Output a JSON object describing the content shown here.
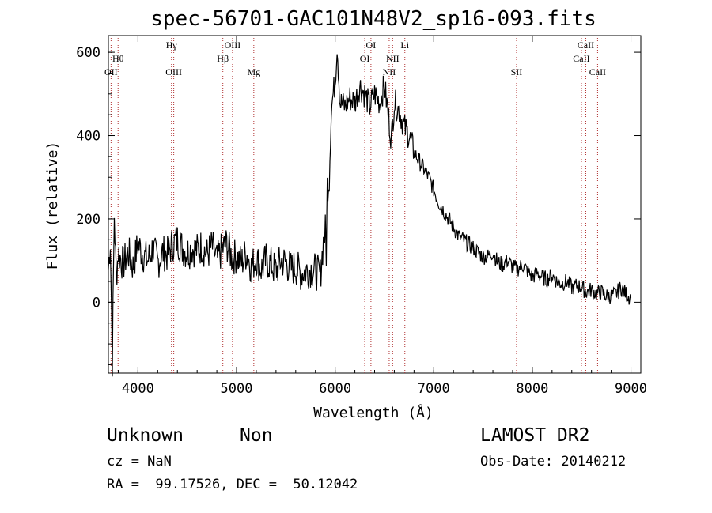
{
  "chart_data": {
    "type": "line",
    "title": "spec-56701-GAC101N48V2_sp16-093.fits",
    "xlabel": "Wavelength (Å)",
    "ylabel": "Flux (relative)",
    "xlim": [
      3700,
      9100
    ],
    "ylim": [
      -170,
      640
    ],
    "xticks": [
      4000,
      5000,
      6000,
      7000,
      8000,
      9000
    ],
    "yticks": [
      0,
      200,
      400,
      600
    ],
    "grid": false,
    "series": [
      {
        "x": [
          3700,
          3720,
          3740,
          3760,
          3780,
          3800,
          3850,
          3900,
          3950,
          4000,
          4050,
          4100,
          4150,
          4200,
          4250,
          4300,
          4350,
          4400,
          4450,
          4500,
          4550,
          4600,
          4650,
          4700,
          4750,
          4800,
          4850,
          4900,
          4950,
          5000,
          5050,
          5100,
          5150,
          5200,
          5250,
          5300,
          5350,
          5400,
          5450,
          5500,
          5550,
          5600,
          5650,
          5700,
          5750,
          5800,
          5850,
          5880,
          5900,
          5910,
          5920,
          5940,
          5960,
          5980,
          6000,
          6020,
          6050,
          6100,
          6150,
          6200,
          6250,
          6300,
          6350,
          6400,
          6450,
          6500,
          6550,
          6570,
          6600,
          6650,
          6700,
          6750,
          6800,
          6850,
          6900,
          6950,
          7000,
          7050,
          7100,
          7150,
          7200,
          7250,
          7300,
          7350,
          7400,
          7450,
          7500,
          7550,
          7600,
          7650,
          7700,
          7750,
          7800,
          7850,
          7900,
          7950,
          8000,
          8050,
          8100,
          8150,
          8200,
          8250,
          8300,
          8350,
          8400,
          8450,
          8500,
          8550,
          8600,
          8650,
          8700,
          8750,
          8800,
          8850,
          8900,
          8950,
          9000
        ],
        "values": [
          80,
          150,
          -140,
          210,
          60,
          120,
          90,
          120,
          85,
          140,
          115,
          100,
          130,
          95,
          120,
          115,
          140,
          150,
          130,
          120,
          130,
          125,
          135,
          115,
          135,
          100,
          125,
          140,
          110,
          110,
          95,
          120,
          85,
          105,
          80,
          100,
          90,
          75,
          100,
          95,
          80,
          85,
          70,
          75,
          80,
          75,
          65,
          145,
          170,
          120,
          280,
          300,
          460,
          500,
          530,
          620,
          480,
          470,
          490,
          480,
          520,
          500,
          470,
          500,
          480,
          520,
          430,
          390,
          480,
          460,
          420,
          400,
          360,
          340,
          320,
          300,
          270,
          240,
          220,
          200,
          180,
          160,
          150,
          140,
          130,
          120,
          110,
          110,
          120,
          95,
          90,
          100,
          85,
          80,
          90,
          75,
          60,
          70,
          60,
          55,
          65,
          50,
          45,
          50,
          35,
          40,
          35,
          25,
          30,
          20,
          25,
          15,
          15,
          20,
          35,
          20,
          10
        ]
      }
    ],
    "lines": [
      {
        "label": "OII",
        "wavelength": 3727,
        "row": 2
      },
      {
        "label": "Hθ",
        "wavelength": 3798,
        "row": 1
      },
      {
        "label": "Hγ",
        "wavelength": 4340,
        "row": 0
      },
      {
        "label": "OIII",
        "wavelength": 4363,
        "row": 2
      },
      {
        "label": "Hβ",
        "wavelength": 4861,
        "row": 1
      },
      {
        "label": "OIII",
        "wavelength": 4959,
        "row": 0
      },
      {
        "label": "Mg",
        "wavelength": 5175,
        "row": 2
      },
      {
        "label": "OI",
        "wavelength": 6300,
        "row": 1
      },
      {
        "label": "OI",
        "wavelength": 6363,
        "row": 0
      },
      {
        "label": "NII",
        "wavelength": 6548,
        "row": 2
      },
      {
        "label": "NII",
        "wavelength": 6583,
        "row": 1
      },
      {
        "label": "Li",
        "wavelength": 6707,
        "row": 0
      },
      {
        "label": "SII",
        "wavelength": 7840,
        "row": 2
      },
      {
        "label": "CaII",
        "wavelength": 8498,
        "row": 1
      },
      {
        "label": "CaII",
        "wavelength": 8542,
        "row": 0
      },
      {
        "label": "CaII",
        "wavelength": 8662,
        "row": 2
      }
    ]
  },
  "info": {
    "object_class": "Unknown",
    "subclass": "Non",
    "cz": "cz = NaN",
    "coords": "RA =  99.17526, DEC =  50.12042",
    "survey": "LAMOST DR2",
    "obs_date": "Obs-Date: 20140212"
  }
}
